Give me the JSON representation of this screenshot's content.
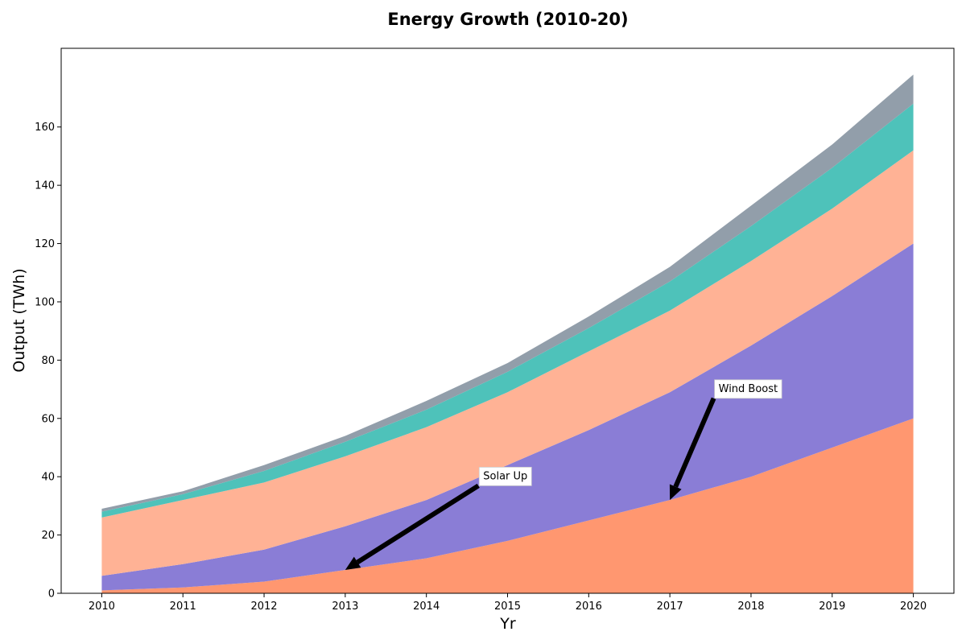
{
  "chart_data": {
    "type": "area",
    "stacked": true,
    "title": "Energy Growth (2010-20)",
    "xlabel": "Yr",
    "ylabel": "Output (TWh)",
    "x": [
      2010,
      2011,
      2012,
      2013,
      2014,
      2015,
      2016,
      2017,
      2018,
      2019,
      2020
    ],
    "xlim": [
      2009.5,
      2020.5
    ],
    "ylim": [
      0,
      187
    ],
    "xticks": [
      2010,
      2011,
      2012,
      2013,
      2014,
      2015,
      2016,
      2017,
      2018,
      2019,
      2020
    ],
    "yticks": [
      0,
      20,
      40,
      60,
      80,
      100,
      120,
      140,
      160
    ],
    "grid": false,
    "legend": "none",
    "series": [
      {
        "color": "#ff9770",
        "values": [
          1,
          2,
          4,
          8,
          12,
          18,
          25,
          32,
          40,
          50,
          60
        ]
      },
      {
        "color": "#8a7dd6",
        "values": [
          5,
          8,
          11,
          15,
          20,
          26,
          31,
          37,
          45,
          52,
          60
        ]
      },
      {
        "color": "#ffb295",
        "values": [
          20,
          22,
          23,
          24,
          25,
          25,
          27,
          28,
          29,
          30,
          32
        ]
      },
      {
        "color": "#4ec2ba",
        "values": [
          2,
          2,
          4,
          5,
          6,
          7,
          8,
          10,
          12,
          14,
          16
        ]
      },
      {
        "color": "#929eaa",
        "values": [
          1,
          1,
          2,
          2,
          3,
          3,
          4,
          5,
          7,
          8,
          10
        ]
      }
    ],
    "annotations": [
      {
        "text": "Solar Up",
        "point": [
          2013,
          8
        ],
        "text_at": [
          2014.7,
          40.5
        ]
      },
      {
        "text": "Wind Boost",
        "point": [
          2017,
          32
        ],
        "text_at": [
          2017.6,
          70.5
        ]
      }
    ]
  }
}
